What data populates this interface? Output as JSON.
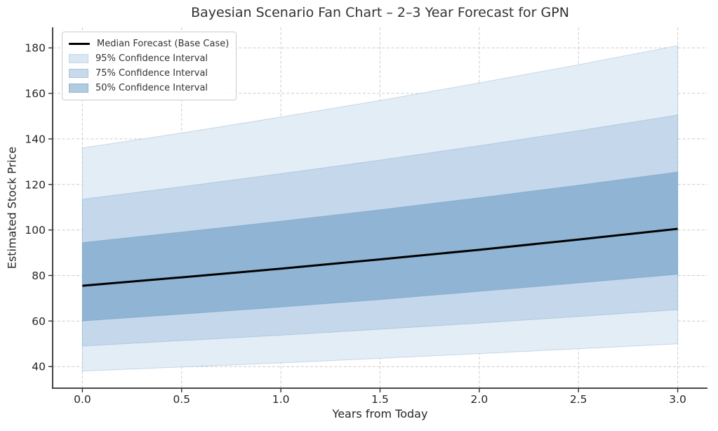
{
  "figure": {
    "title": "Bayesian Scenario Fan Chart – 2–3 Year Forecast for GPN",
    "xlabel": "Years from Today",
    "ylabel": "Estimated Stock Price"
  },
  "legend": {
    "position": "upper left",
    "items": [
      {
        "label": "Median Forecast (Base Case)",
        "type": "line",
        "color": "#000000",
        "border": "#000000"
      },
      {
        "label": "95% Confidence Interval",
        "type": "patch",
        "color": "#dbe7f2",
        "border": "#c3d6e8"
      },
      {
        "label": "75% Confidence Interval",
        "type": "patch",
        "color": "#c7daeb",
        "border": "#abc5dd"
      },
      {
        "label": "50% Confidence Interval",
        "type": "patch",
        "color": "#b1cce1",
        "border": "#8fb2d0"
      }
    ]
  },
  "chart_data": {
    "type": "area",
    "title": "Bayesian Scenario Fan Chart – 2–3 Year Forecast for GPN",
    "xlabel": "Years from Today",
    "ylabel": "Estimated Stock Price",
    "x": [
      0,
      0.5,
      1,
      1.5,
      2,
      2.5,
      3
    ],
    "series": [
      {
        "name": "95% Confidence Interval",
        "type": "band",
        "fill": "#e3edf6",
        "lower": [
          38,
          39.8,
          41.6,
          43.6,
          45.7,
          47.8,
          50
        ],
        "upper": [
          136,
          142.6,
          149.6,
          156.9,
          164.6,
          172.6,
          181
        ]
      },
      {
        "name": "75% Confidence Interval",
        "type": "band",
        "fill": "#c5d8eb",
        "lower": [
          49,
          51.4,
          53.8,
          56.4,
          59.1,
          62,
          65
        ],
        "upper": [
          113.5,
          119,
          124.7,
          130.7,
          137,
          143.6,
          150.5
        ]
      },
      {
        "name": "50% Confidence Interval",
        "type": "band",
        "fill": "#8fb4d4",
        "lower": [
          60,
          63,
          66.1,
          69.4,
          73,
          76.7,
          80.5
        ],
        "upper": [
          94.5,
          99.1,
          103.9,
          108.9,
          114.2,
          119.7,
          125.5
        ]
      },
      {
        "name": "Median Forecast (Base Case)",
        "type": "line",
        "color": "#000000",
        "values": [
          75.5,
          79.2,
          83,
          87.1,
          91.3,
          95.8,
          100.5
        ]
      }
    ],
    "xlim": [
      -0.15,
      3.15
    ],
    "ylim": [
      30.5,
      189
    ],
    "xticks": [
      0,
      0.5,
      1,
      1.5,
      2,
      2.5,
      3
    ],
    "xtick_labels": [
      "0.0",
      "0.5",
      "1.0",
      "1.5",
      "2.0",
      "2.5",
      "3.0"
    ],
    "yticks": [
      40,
      60,
      80,
      100,
      120,
      140,
      160,
      180
    ],
    "ytick_labels": [
      "40",
      "60",
      "80",
      "100",
      "120",
      "140",
      "160",
      "180"
    ],
    "grid": true,
    "grid_style": "dashed",
    "legend_position": "upper left"
  },
  "colors": {
    "median_line": "#000000",
    "band_95": "#e3edf6",
    "band_75": "#c5d8eb",
    "band_50": "#8fb4d4",
    "band_edge": "rgba(70,130,180,0.25)",
    "grid": "#cccccc",
    "spine": "#2e2e2e",
    "tick_label": "#262626",
    "title_text": "#333333"
  }
}
